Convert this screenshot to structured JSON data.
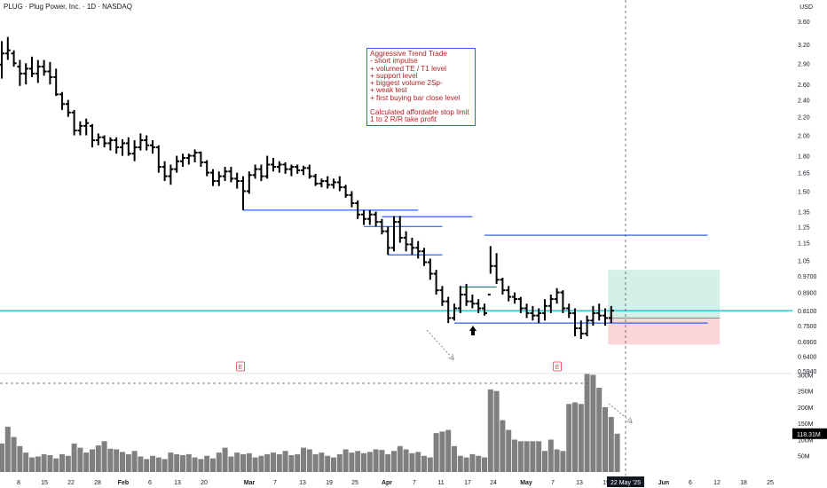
{
  "header": {
    "title": "PLUG · Plug Power, Inc. · 1D · NASDAQ",
    "currency": "USD"
  },
  "note": {
    "lines": [
      "Aggressive Trend Trade",
      "- short impulse",
      "+ volumed TE / T1 level",
      "+ support level",
      "+ biggest volume 2Sp-",
      "+ weak test",
      "+ first buying bar close level",
      "",
      "Calculated affordable stop limit",
      "1 to 2 R/R take profit"
    ]
  },
  "colors": {
    "bar": "#000000",
    "level": "#2962ff",
    "price_line": "#26c6da",
    "target_zone": "#d3f1e9",
    "stop_zone": "#fbd6d9",
    "volume": "#808080",
    "earnings": "#f23645",
    "note_text": "#b22222"
  },
  "chart_data": {
    "type": "ohlc",
    "price_axis": {
      "scale": "log",
      "ticks": [
        "3.60",
        "3.20",
        "2.90",
        "2.60",
        "2.40",
        "2.20",
        "2.00",
        "1.80",
        "1.65",
        "1.50",
        "1.35",
        "1.25",
        "1.15",
        "1.05",
        "0.9700",
        "0.8900",
        "0.8100",
        "0.7500",
        "0.6900",
        "0.6400",
        "0.5940"
      ],
      "current_price_label": "0.8100",
      "current_price": 0.81
    },
    "volume_axis": {
      "ticks": [
        "300M",
        "250M",
        "200M",
        "150M",
        "100M",
        "50M"
      ],
      "current_volume_label": "118.31M"
    },
    "time_axis": {
      "ticks": [
        "8",
        "15",
        "22",
        "28",
        "Feb",
        "6",
        "13",
        "20",
        "Mar",
        "7",
        "13",
        "19",
        "25",
        "Apr",
        "7",
        "11",
        "17",
        "24",
        "May",
        "7",
        "13",
        "19",
        "Jun",
        "6",
        "12",
        "18",
        "25"
      ],
      "current_date_label": "22 May '25"
    },
    "bars": [
      {
        "o": 2.88,
        "h": 3.25,
        "l": 2.68,
        "c": 3.05
      },
      {
        "o": 3.05,
        "h": 3.32,
        "l": 2.95,
        "c": 3.1
      },
      {
        "o": 3.05,
        "h": 3.1,
        "l": 2.85,
        "c": 2.9
      },
      {
        "o": 2.85,
        "h": 2.95,
        "l": 2.58,
        "c": 2.75
      },
      {
        "o": 2.75,
        "h": 2.9,
        "l": 2.6,
        "c": 2.82
      },
      {
        "o": 2.82,
        "h": 3.0,
        "l": 2.7,
        "c": 2.75
      },
      {
        "o": 2.75,
        "h": 2.95,
        "l": 2.62,
        "c": 2.85
      },
      {
        "o": 2.85,
        "h": 2.95,
        "l": 2.72,
        "c": 2.78
      },
      {
        "o": 2.78,
        "h": 2.92,
        "l": 2.6,
        "c": 2.7
      },
      {
        "o": 2.7,
        "h": 2.82,
        "l": 2.45,
        "c": 2.47
      },
      {
        "o": 2.47,
        "h": 2.5,
        "l": 2.28,
        "c": 2.35
      },
      {
        "o": 2.35,
        "h": 2.4,
        "l": 2.2,
        "c": 2.25
      },
      {
        "o": 2.25,
        "h": 2.28,
        "l": 2.0,
        "c": 2.05
      },
      {
        "o": 2.05,
        "h": 2.15,
        "l": 2.0,
        "c": 2.1
      },
      {
        "o": 2.1,
        "h": 2.18,
        "l": 2.0,
        "c": 2.13
      },
      {
        "o": 2.1,
        "h": 2.12,
        "l": 1.88,
        "c": 1.95
      },
      {
        "o": 1.95,
        "h": 2.02,
        "l": 1.9,
        "c": 1.98
      },
      {
        "o": 1.98,
        "h": 2.0,
        "l": 1.88,
        "c": 1.92
      },
      {
        "o": 1.92,
        "h": 1.98,
        "l": 1.85,
        "c": 1.95
      },
      {
        "o": 1.95,
        "h": 1.98,
        "l": 1.82,
        "c": 1.88
      },
      {
        "o": 1.88,
        "h": 1.96,
        "l": 1.8,
        "c": 1.92
      },
      {
        "o": 1.92,
        "h": 1.98,
        "l": 1.8,
        "c": 1.82
      },
      {
        "o": 1.82,
        "h": 1.95,
        "l": 1.75,
        "c": 1.88
      },
      {
        "o": 1.88,
        "h": 2.02,
        "l": 1.85,
        "c": 1.95
      },
      {
        "o": 1.95,
        "h": 2.0,
        "l": 1.85,
        "c": 1.9
      },
      {
        "o": 1.9,
        "h": 1.95,
        "l": 1.82,
        "c": 1.88
      },
      {
        "o": 1.88,
        "h": 1.9,
        "l": 1.65,
        "c": 1.7
      },
      {
        "o": 1.7,
        "h": 1.75,
        "l": 1.58,
        "c": 1.62
      },
      {
        "o": 1.62,
        "h": 1.72,
        "l": 1.55,
        "c": 1.68
      },
      {
        "o": 1.68,
        "h": 1.8,
        "l": 1.65,
        "c": 1.75
      },
      {
        "o": 1.75,
        "h": 1.82,
        "l": 1.7,
        "c": 1.78
      },
      {
        "o": 1.78,
        "h": 1.82,
        "l": 1.72,
        "c": 1.8
      },
      {
        "o": 1.8,
        "h": 1.86,
        "l": 1.74,
        "c": 1.83
      },
      {
        "o": 1.83,
        "h": 1.84,
        "l": 1.7,
        "c": 1.74
      },
      {
        "o": 1.74,
        "h": 1.76,
        "l": 1.62,
        "c": 1.65
      },
      {
        "o": 1.65,
        "h": 1.68,
        "l": 1.54,
        "c": 1.58
      },
      {
        "o": 1.58,
        "h": 1.66,
        "l": 1.54,
        "c": 1.62
      },
      {
        "o": 1.62,
        "h": 1.7,
        "l": 1.58,
        "c": 1.66
      },
      {
        "o": 1.66,
        "h": 1.7,
        "l": 1.57,
        "c": 1.6
      },
      {
        "o": 1.6,
        "h": 1.65,
        "l": 1.52,
        "c": 1.58
      },
      {
        "o": 1.58,
        "h": 1.62,
        "l": 1.36,
        "c": 1.5
      },
      {
        "o": 1.5,
        "h": 1.66,
        "l": 1.48,
        "c": 1.63
      },
      {
        "o": 1.63,
        "h": 1.72,
        "l": 1.6,
        "c": 1.68
      },
      {
        "o": 1.68,
        "h": 1.72,
        "l": 1.58,
        "c": 1.62
      },
      {
        "o": 1.62,
        "h": 1.8,
        "l": 1.6,
        "c": 1.72
      },
      {
        "o": 1.72,
        "h": 1.78,
        "l": 1.66,
        "c": 1.7
      },
      {
        "o": 1.7,
        "h": 1.75,
        "l": 1.65,
        "c": 1.72
      },
      {
        "o": 1.72,
        "h": 1.74,
        "l": 1.64,
        "c": 1.68
      },
      {
        "o": 1.68,
        "h": 1.72,
        "l": 1.62,
        "c": 1.7
      },
      {
        "o": 1.7,
        "h": 1.72,
        "l": 1.64,
        "c": 1.67
      },
      {
        "o": 1.67,
        "h": 1.71,
        "l": 1.63,
        "c": 1.69
      },
      {
        "o": 1.69,
        "h": 1.72,
        "l": 1.6,
        "c": 1.62
      },
      {
        "o": 1.62,
        "h": 1.64,
        "l": 1.54,
        "c": 1.56
      },
      {
        "o": 1.56,
        "h": 1.6,
        "l": 1.53,
        "c": 1.58
      },
      {
        "o": 1.58,
        "h": 1.62,
        "l": 1.52,
        "c": 1.55
      },
      {
        "o": 1.55,
        "h": 1.6,
        "l": 1.52,
        "c": 1.57
      },
      {
        "o": 1.57,
        "h": 1.62,
        "l": 1.5,
        "c": 1.53
      },
      {
        "o": 1.53,
        "h": 1.55,
        "l": 1.45,
        "c": 1.47
      },
      {
        "o": 1.47,
        "h": 1.5,
        "l": 1.38,
        "c": 1.41
      },
      {
        "o": 1.41,
        "h": 1.43,
        "l": 1.3,
        "c": 1.33
      },
      {
        "o": 1.33,
        "h": 1.36,
        "l": 1.26,
        "c": 1.3
      },
      {
        "o": 1.3,
        "h": 1.36,
        "l": 1.26,
        "c": 1.33
      },
      {
        "o": 1.33,
        "h": 1.35,
        "l": 1.25,
        "c": 1.28
      },
      {
        "o": 1.28,
        "h": 1.3,
        "l": 1.2,
        "c": 1.22
      },
      {
        "o": 1.22,
        "h": 1.25,
        "l": 1.08,
        "c": 1.12
      },
      {
        "o": 1.12,
        "h": 1.32,
        "l": 1.1,
        "c": 1.28
      },
      {
        "o": 1.28,
        "h": 1.32,
        "l": 1.15,
        "c": 1.18
      },
      {
        "o": 1.18,
        "h": 1.22,
        "l": 1.1,
        "c": 1.14
      },
      {
        "o": 1.14,
        "h": 1.18,
        "l": 1.08,
        "c": 1.12
      },
      {
        "o": 1.12,
        "h": 1.16,
        "l": 1.06,
        "c": 1.1
      },
      {
        "o": 1.1,
        "h": 1.12,
        "l": 1.02,
        "c": 1.04
      },
      {
        "o": 1.04,
        "h": 1.06,
        "l": 0.95,
        "c": 0.98
      },
      {
        "o": 0.98,
        "h": 1.0,
        "l": 0.88,
        "c": 0.9
      },
      {
        "o": 0.9,
        "h": 0.92,
        "l": 0.83,
        "c": 0.85
      },
      {
        "o": 0.85,
        "h": 0.87,
        "l": 0.76,
        "c": 0.78
      },
      {
        "o": 0.78,
        "h": 0.84,
        "l": 0.77,
        "c": 0.82
      },
      {
        "o": 0.82,
        "h": 0.92,
        "l": 0.8,
        "c": 0.88
      },
      {
        "o": 0.88,
        "h": 0.93,
        "l": 0.83,
        "c": 0.85
      },
      {
        "o": 0.85,
        "h": 0.88,
        "l": 0.82,
        "c": 0.84
      },
      {
        "o": 0.84,
        "h": 0.86,
        "l": 0.8,
        "c": 0.82
      },
      {
        "o": 0.82,
        "h": 0.84,
        "l": 0.79,
        "c": 0.8
      },
      {
        "o": 0.88,
        "h": 1.13,
        "l": 0.98,
        "c": 1.02
      },
      {
        "o": 1.02,
        "h": 1.09,
        "l": 0.93,
        "c": 0.95
      },
      {
        "o": 0.95,
        "h": 0.96,
        "l": 0.88,
        "c": 0.9
      },
      {
        "o": 0.9,
        "h": 0.92,
        "l": 0.85,
        "c": 0.87
      },
      {
        "o": 0.87,
        "h": 0.89,
        "l": 0.84,
        "c": 0.86
      },
      {
        "o": 0.86,
        "h": 0.87,
        "l": 0.8,
        "c": 0.82
      },
      {
        "o": 0.82,
        "h": 0.84,
        "l": 0.78,
        "c": 0.8
      },
      {
        "o": 0.8,
        "h": 0.83,
        "l": 0.77,
        "c": 0.79
      },
      {
        "o": 0.79,
        "h": 0.82,
        "l": 0.76,
        "c": 0.8
      },
      {
        "o": 0.8,
        "h": 0.86,
        "l": 0.77,
        "c": 0.83
      },
      {
        "o": 0.83,
        "h": 0.88,
        "l": 0.8,
        "c": 0.86
      },
      {
        "o": 0.86,
        "h": 0.91,
        "l": 0.84,
        "c": 0.89
      },
      {
        "o": 0.89,
        "h": 0.9,
        "l": 0.8,
        "c": 0.82
      },
      {
        "o": 0.82,
        "h": 0.84,
        "l": 0.78,
        "c": 0.8
      },
      {
        "o": 0.8,
        "h": 0.82,
        "l": 0.71,
        "c": 0.74
      },
      {
        "o": 0.74,
        "h": 0.77,
        "l": 0.7,
        "c": 0.72
      },
      {
        "o": 0.72,
        "h": 0.79,
        "l": 0.71,
        "c": 0.77
      },
      {
        "o": 0.77,
        "h": 0.83,
        "l": 0.75,
        "c": 0.8
      },
      {
        "o": 0.8,
        "h": 0.84,
        "l": 0.77,
        "c": 0.79
      },
      {
        "o": 0.79,
        "h": 0.82,
        "l": 0.75,
        "c": 0.78
      },
      {
        "o": 0.78,
        "h": 0.83,
        "l": 0.76,
        "c": 0.81
      }
    ],
    "volumes_m": [
      88,
      140,
      108,
      80,
      60,
      45,
      48,
      55,
      52,
      42,
      55,
      50,
      88,
      75,
      60,
      70,
      82,
      95,
      72,
      70,
      62,
      55,
      65,
      48,
      40,
      50,
      45,
      40,
      60,
      55,
      52,
      55,
      45,
      40,
      50,
      42,
      60,
      75,
      48,
      60,
      55,
      58,
      45,
      50,
      55,
      60,
      55,
      65,
      52,
      55,
      75,
      70,
      55,
      60,
      50,
      45,
      55,
      70,
      60,
      65,
      58,
      62,
      70,
      68,
      55,
      65,
      80,
      70,
      58,
      62,
      50,
      45,
      120,
      125,
      130,
      80,
      50,
      45,
      55,
      50,
      45,
      255,
      250,
      160,
      130,
      100,
      95,
      95,
      95,
      95,
      65,
      100,
      70,
      65,
      210,
      215,
      210,
      305,
      300,
      260,
      200,
      170,
      118.31
    ],
    "levels": [
      {
        "price": 1.36,
        "from": 40,
        "to": 69
      },
      {
        "price": 1.315,
        "from": 63,
        "to": 78
      },
      {
        "price": 1.25,
        "from": 60,
        "to": 73
      },
      {
        "price": 1.08,
        "from": 64,
        "to": 73
      },
      {
        "price": 0.915,
        "from": 76,
        "to": 82
      },
      {
        "price": 1.195,
        "from": 80,
        "to": 117
      },
      {
        "price": 0.76,
        "from": 75,
        "to": 117
      }
    ],
    "position": {
      "entry": 0.78,
      "target": 1.0,
      "stop": 0.68,
      "from": 100.5,
      "to": 119
    },
    "earnings_markers": [
      39.5,
      92
    ]
  }
}
